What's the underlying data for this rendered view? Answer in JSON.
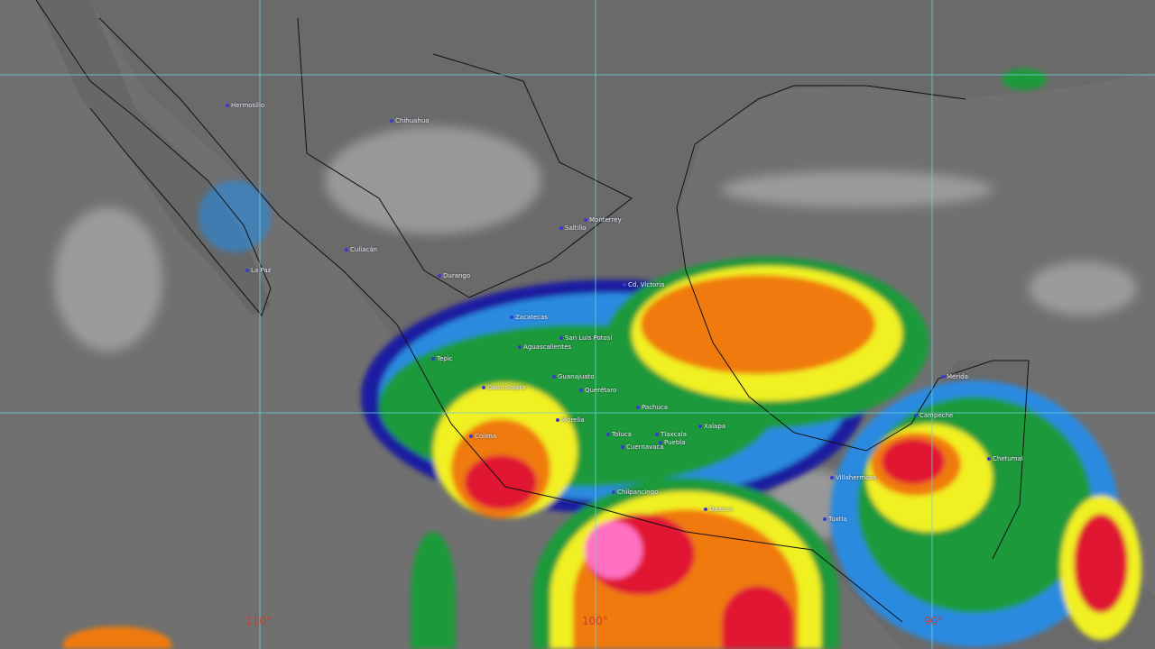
{
  "cities": [
    {
      "name": "Hermosillo"
    },
    {
      "name": "Chihuahua"
    },
    {
      "name": "Culiacán"
    },
    {
      "name": "La Paz"
    },
    {
      "name": "Durango"
    },
    {
      "name": "Saltillo"
    },
    {
      "name": "Monterrey"
    },
    {
      "name": "Cd. Victoria"
    },
    {
      "name": "Zacatecas"
    },
    {
      "name": "Tepic"
    },
    {
      "name": "Aguascalientes"
    },
    {
      "name": "San Luis Potosí"
    },
    {
      "name": "Guadalajara"
    },
    {
      "name": "Guanajuato"
    },
    {
      "name": "Querétaro"
    },
    {
      "name": "Pachuca"
    },
    {
      "name": "Morelia"
    },
    {
      "name": "Colima"
    },
    {
      "name": "Toluca"
    },
    {
      "name": "Tlaxcala"
    },
    {
      "name": "Puebla"
    },
    {
      "name": "Cuernavaca"
    },
    {
      "name": "Xalapa"
    },
    {
      "name": "Chilpancingo"
    },
    {
      "name": "Oaxaca"
    },
    {
      "name": "Mérida"
    },
    {
      "name": "Campeche"
    },
    {
      "name": "Chetumal"
    },
    {
      "name": "Villahermosa"
    },
    {
      "name": "Tuxtla"
    }
  ],
  "longitude_labels": [
    "110°",
    "100°",
    "90°"
  ],
  "colors": {
    "grid": "#6fd0d8",
    "label": "#d23a2a",
    "cloud_scale": [
      "#1a1aa0",
      "#2a8ae0",
      "#1a9a3a",
      "#f0f020",
      "#f07a10",
      "#e01830",
      "#ff70c0"
    ]
  }
}
